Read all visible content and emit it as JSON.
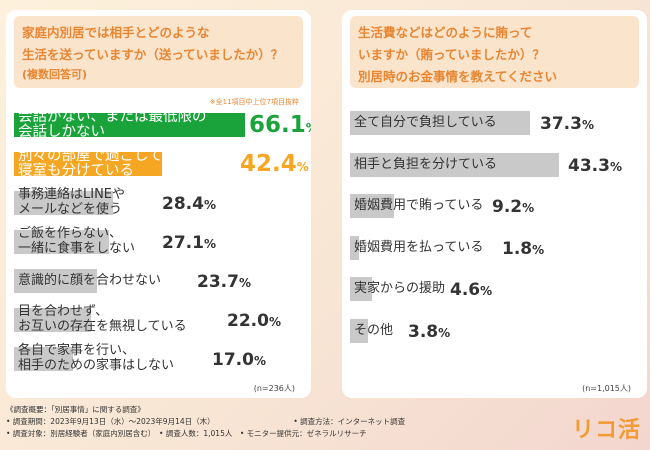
{
  "left_panel": {
    "question_lines": [
      "家庭内別居では相手とどのような",
      "生活を送っていますか（送っていましたか）？",
      "(複数回答可)"
    ],
    "note": "※全11項目中上位7項目抜粋",
    "n_label": "(n=236人)"
  },
  "right_panel": {
    "question_lines": [
      "生活費などはどのように賄って",
      "いますか（賄っていましたか）？",
      "別居時のお金事情を教えてください"
    ],
    "n_label": "(n=1,015人)"
  },
  "colors": {
    "accent": "#e88632",
    "green": "#1aa33b",
    "orange": "#f5a623",
    "gray_bar": "#c9c9c9",
    "header_bg": "#fbe4cc"
  },
  "chart_data": [
    {
      "type": "bar",
      "orientation": "horizontal",
      "title": "家庭内別居では相手とどのような生活を送っていますか（送っていましたか）？(複数回答可)",
      "unit": "%",
      "categories": [
        [
          "会話がない、または最低限の",
          "会話しかない"
        ],
        [
          "別々の部屋で過ごしていて、",
          "寝室も分けている"
        ],
        [
          "事務連絡はLINEや",
          "メールなどを使う"
        ],
        [
          "ご飯を作らない、",
          "一緒に食事をしない"
        ],
        [
          "意識的に顔を合わせない"
        ],
        [
          "目を合わせず、",
          "お互いの存在を無視している"
        ],
        [
          "各自で家事を行い、",
          "相手のための家事はしない"
        ]
      ],
      "values": [
        66.1,
        42.4,
        28.4,
        27.1,
        23.7,
        22.0,
        17.0
      ],
      "value_labels": [
        "66.1",
        "42.4",
        "28.4",
        "27.1",
        "23.7",
        "22.0",
        "17.0"
      ],
      "xlim": [
        0,
        100
      ]
    },
    {
      "type": "bar",
      "orientation": "horizontal",
      "title": "生活費などはどのように賄っていますか（賄っていましたか）？別居時のお金事情を教えてください",
      "unit": "%",
      "categories": [
        [
          "全て自分で負担している"
        ],
        [
          "相手と負担を分けている"
        ],
        [
          "婚姻費用で賄っている"
        ],
        [
          "婚姻費用を払っている"
        ],
        [
          "実家からの援助"
        ],
        [
          "その他"
        ]
      ],
      "values": [
        37.3,
        43.3,
        9.2,
        1.8,
        4.6,
        3.8
      ],
      "value_labels": [
        "37.3",
        "43.3",
        "9.2",
        "1.8",
        "4.6",
        "3.8"
      ],
      "xlim": [
        0,
        100
      ]
    }
  ],
  "footer": {
    "lines": [
      "《調査概要：「別居事情」に関する調査》",
      "• 調査期間：2023年9月13日（水）〜2023年9月14日（木）　　　　　　　　　　　• 調査方法：インターネット調査",
      "• 調査対象：別居経験者（家庭内別居含む）　• 調査人数：1,015人　• モニター提供元：ゼネラルリサーチ"
    ],
    "logo": "リコ活"
  }
}
